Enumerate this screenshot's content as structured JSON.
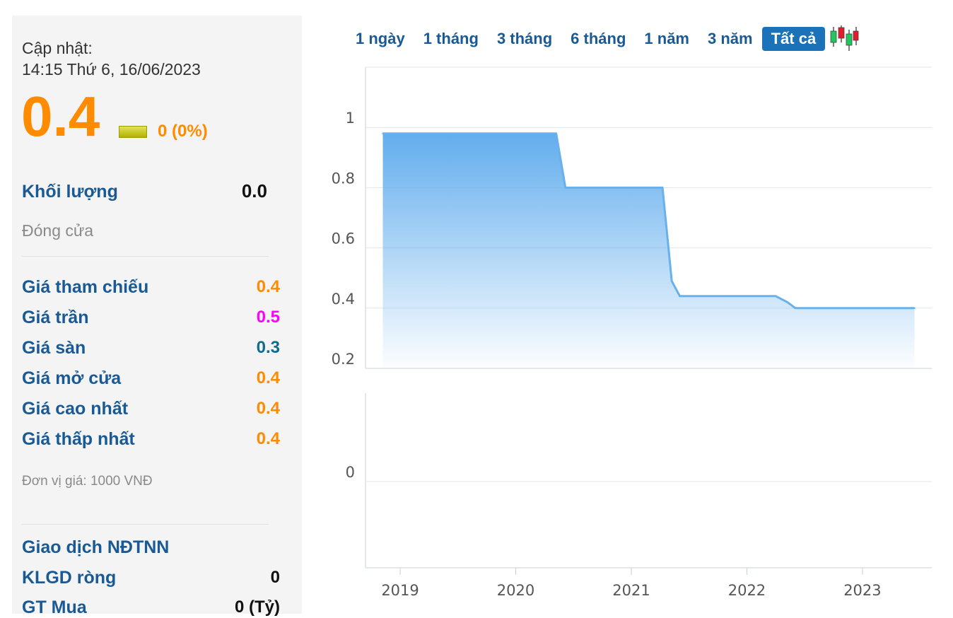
{
  "left_panel": {
    "update_label": "Cập nhật:",
    "update_time": "14:15 Thứ 6, 16/06/2023",
    "price": "0.4",
    "change": "0 (0%)",
    "volume_label": "Khối lượng",
    "volume_value": "0.0",
    "status": "Đóng cửa",
    "rows": [
      {
        "label": "Giá tham chiếu",
        "value": "0.4",
        "color": "#ff8c00"
      },
      {
        "label": "Giá trần",
        "value": "0.5",
        "color": "#ff00ff"
      },
      {
        "label": "Giá sàn",
        "value": "0.3",
        "color": "#0e6c8f"
      },
      {
        "label": "Giá mở cửa",
        "value": "0.4",
        "color": "#ff8c00"
      },
      {
        "label": "Giá cao nhất",
        "value": "0.4",
        "color": "#ff8c00"
      },
      {
        "label": "Giá thấp nhất",
        "value": "0.4",
        "color": "#ff8c00"
      }
    ],
    "unit_note": "Đơn vị giá: 1000 VNĐ",
    "foreign_title": "Giao dịch NĐTNN",
    "net_volume_label": "KLGD ròng",
    "net_volume_value": "0",
    "buy_value_label": "GT Mua",
    "buy_value_value": "0 (Tỷ)"
  },
  "tabs": [
    {
      "label": "1 ngày",
      "active": false
    },
    {
      "label": "1 tháng",
      "active": false
    },
    {
      "label": "3 tháng",
      "active": false
    },
    {
      "label": "6 tháng",
      "active": false
    },
    {
      "label": "1 năm",
      "active": false
    },
    {
      "label": "3 năm",
      "active": false
    },
    {
      "label": "Tất cả",
      "active": true
    }
  ],
  "candlestick_icon": "candlestick-chart-icon",
  "chart_data": {
    "type": "area",
    "title": "",
    "xlabel": "",
    "ylabel": "",
    "x_ticks": [
      "2019",
      "2020",
      "2021",
      "2022",
      "2023"
    ],
    "y_ticks": [
      "0.2",
      "0.4",
      "0.6",
      "0.8",
      "1"
    ],
    "ylim": [
      0.2,
      1.2
    ],
    "xlim": [
      2018.7,
      2023.6
    ],
    "grid": true,
    "color": "#6ab0ea",
    "series": [
      {
        "x": [
          2018.85,
          2020.35,
          2020.43,
          2020.5,
          2021.27,
          2021.35,
          2021.42,
          2022.25,
          2022.35,
          2022.42,
          2023.45
        ],
        "y": [
          0.98,
          0.98,
          0.8,
          0.8,
          0.8,
          0.49,
          0.44,
          0.44,
          0.42,
          0.4,
          0.4
        ]
      }
    ],
    "volume_panel": {
      "type": "bar",
      "y_ticks": [
        "0"
      ],
      "values": []
    }
  }
}
